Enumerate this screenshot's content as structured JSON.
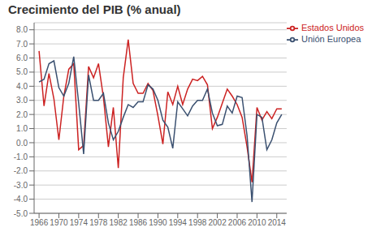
{
  "chart_data": {
    "type": "line",
    "title": "Crecimiento del PIB (% anual)",
    "x": [
      1966,
      1967,
      1968,
      1969,
      1970,
      1971,
      1972,
      1973,
      1974,
      1975,
      1976,
      1977,
      1978,
      1979,
      1980,
      1981,
      1982,
      1983,
      1984,
      1985,
      1986,
      1987,
      1988,
      1989,
      1990,
      1991,
      1992,
      1993,
      1994,
      1995,
      1996,
      1997,
      1998,
      1999,
      2000,
      2001,
      2002,
      2003,
      2004,
      2005,
      2006,
      2007,
      2008,
      2009,
      2010,
      2011,
      2012,
      2013,
      2014,
      2015
    ],
    "series": [
      {
        "name": "Estados Unidos",
        "color": "#cc2222",
        "values": [
          6.5,
          2.6,
          4.9,
          3.1,
          0.2,
          3.3,
          5.2,
          5.6,
          -0.5,
          -0.2,
          5.4,
          4.6,
          5.6,
          3.2,
          -0.3,
          2.5,
          -1.8,
          4.6,
          7.3,
          4.2,
          3.5,
          3.5,
          4.2,
          3.7,
          1.9,
          -0.1,
          3.6,
          2.7,
          4.0,
          2.7,
          3.8,
          4.5,
          4.4,
          4.7,
          4.1,
          1.0,
          1.8,
          2.8,
          3.8,
          3.3,
          2.7,
          1.8,
          -0.3,
          -2.8,
          2.5,
          1.6,
          2.2,
          1.7,
          2.4,
          2.4
        ]
      },
      {
        "name": "Unión Europea",
        "color": "#3a5070",
        "values": [
          4.3,
          4.5,
          5.6,
          5.8,
          3.9,
          3.3,
          4.2,
          6.1,
          2.8,
          -0.8,
          4.8,
          3.0,
          3.0,
          3.5,
          1.4,
          0.2,
          0.8,
          1.8,
          2.7,
          2.5,
          2.9,
          2.9,
          4.1,
          3.8,
          3.0,
          1.6,
          1.1,
          -0.4,
          2.9,
          2.4,
          1.9,
          2.6,
          3.0,
          3.0,
          3.8,
          2.1,
          1.2,
          1.3,
          2.6,
          2.1,
          3.3,
          3.2,
          0.5,
          -4.2,
          2.0,
          1.8,
          -0.5,
          0.2,
          1.4,
          2.0
        ]
      }
    ],
    "xlim": [
      1965,
      2016
    ],
    "xticks": [
      1966,
      1970,
      1974,
      1978,
      1982,
      1986,
      1990,
      1994,
      1998,
      2002,
      2006,
      2010,
      2014
    ],
    "ylim": [
      -5.0,
      8.5
    ],
    "yticks": [
      {
        "value": -5,
        "label": "-5.0"
      },
      {
        "value": -4,
        "label": "-4.0"
      },
      {
        "value": -3,
        "label": "-3.0"
      },
      {
        "value": -2,
        "label": "-2.0"
      },
      {
        "value": -1,
        "label": "-1.0"
      },
      {
        "value": 0,
        "label": "0.0"
      },
      {
        "value": 1,
        "label": "1.0"
      },
      {
        "value": 2,
        "label": "2.0"
      },
      {
        "value": 3,
        "label": "3.0"
      },
      {
        "value": 4,
        "label": "4.0"
      },
      {
        "value": 5,
        "label": "5.0"
      },
      {
        "value": 6,
        "label": "6.0"
      },
      {
        "value": 7,
        "label": "7.0"
      },
      {
        "value": 8,
        "label": "8.0"
      }
    ],
    "grid": true,
    "legend": "upper right"
  }
}
